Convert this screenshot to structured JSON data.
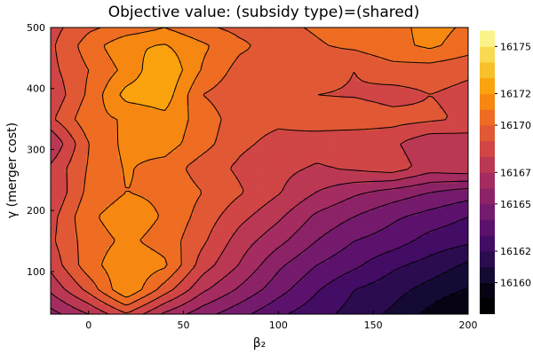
{
  "chart_data": {
    "type": "heatmap",
    "style": "filled-contour",
    "title": "Objective value: (subsidy type)=(shared)",
    "xlabel": "β₂",
    "ylabel": "γ (merger cost)",
    "xlim": [
      -20,
      200
    ],
    "ylim": [
      30,
      500
    ],
    "xticks": [
      0,
      50,
      100,
      150,
      200
    ],
    "yticks": [
      100,
      200,
      300,
      400,
      500
    ],
    "x": [
      -20,
      0,
      20,
      40,
      60,
      80,
      100,
      120,
      140,
      160,
      180,
      200
    ],
    "y": [
      30,
      70,
      110,
      150,
      190,
      230,
      270,
      310,
      350,
      390,
      430,
      470,
      500
    ],
    "z": [
      [
        16165.6,
        16167.0,
        16168.9,
        16166.8,
        16165.4,
        16164.3,
        16163.2,
        16162.4,
        16161.6,
        16160.8,
        16159.7,
        16158.8
      ],
      [
        16167.2,
        16169.3,
        16172.0,
        16169.5,
        16167.2,
        16165.8,
        16164.4,
        16163.1,
        16162.0,
        16161.4,
        16160.6,
        16159.9
      ],
      [
        16168.3,
        16170.6,
        16171.8,
        16171.2,
        16168.5,
        16166.9,
        16165.2,
        16164.0,
        16163.2,
        16162.2,
        16161.6,
        16160.8
      ],
      [
        16168.8,
        16170.5,
        16171.2,
        16170.6,
        16169.2,
        16167.5,
        16166.3,
        16165.0,
        16164.0,
        16163.5,
        16162.6,
        16162.2
      ],
      [
        16168.6,
        16170.8,
        16171.6,
        16170.9,
        16169.6,
        16168.3,
        16167.2,
        16165.8,
        16165.0,
        16164.2,
        16163.6,
        16163.0
      ],
      [
        16168.0,
        16170.3,
        16171.0,
        16170.8,
        16170.0,
        16169.1,
        16168.1,
        16167.0,
        16166.2,
        16165.6,
        16165.0,
        16164.5
      ],
      [
        16168.2,
        16170.1,
        16171.1,
        16170.6,
        16169.5,
        16168.8,
        16168.3,
        16167.9,
        16168.2,
        16168.6,
        16167.5,
        16167.8
      ],
      [
        16167.0,
        16170.0,
        16171.3,
        16171.5,
        16170.4,
        16169.2,
        16168.7,
        16168.4,
        16168.0,
        16168.2,
        16167.2,
        16167.4
      ],
      [
        16168.8,
        16170.7,
        16171.1,
        16171.7,
        16170.6,
        16169.4,
        16169.2,
        16169.6,
        16169.8,
        16169.4,
        16169.2,
        16168.8
      ],
      [
        16168.2,
        16170.2,
        16172.4,
        16172.6,
        16170.0,
        16169.3,
        16169.6,
        16169.0,
        16168.9,
        16168.6,
        16169.0,
        16168.7
      ],
      [
        16168.7,
        16170.0,
        16171.3,
        16173.0,
        16170.9,
        16169.6,
        16169.8,
        16169.5,
        16169.0,
        16169.6,
        16169.5,
        16169.2
      ],
      [
        16168.8,
        16170.5,
        16171.8,
        16172.1,
        16171.2,
        16170.2,
        16169.5,
        16169.9,
        16170.2,
        16170.7,
        16171.2,
        16170.5
      ],
      [
        16168.6,
        16169.8,
        16170.4,
        16171.0,
        16170.2,
        16169.7,
        16169.8,
        16170.1,
        16170.4,
        16170.6,
        16171.4,
        16170.8
      ]
    ],
    "levels": [
      16159,
      16160,
      16161,
      16162,
      16163,
      16164,
      16165,
      16166,
      16167,
      16168,
      16169,
      16170,
      16171,
      16172,
      16173,
      16174,
      16175,
      16176
    ],
    "colorbar": {
      "ticks": [
        16160,
        16162,
        16165,
        16167,
        16170,
        16172,
        16175
      ],
      "range": [
        16158,
        16176.2
      ]
    },
    "colormap": "inferno",
    "grid": false,
    "legend": "colorbar-right"
  },
  "colors": {
    "inferno_stops": [
      "#000004",
      "#1b0c41",
      "#4a0c6b",
      "#781c6d",
      "#a52c60",
      "#cf4446",
      "#ed6925",
      "#fb9b06",
      "#f7d13d",
      "#fcffa4"
    ],
    "contour_line": "#000000",
    "frame": "#000000"
  }
}
